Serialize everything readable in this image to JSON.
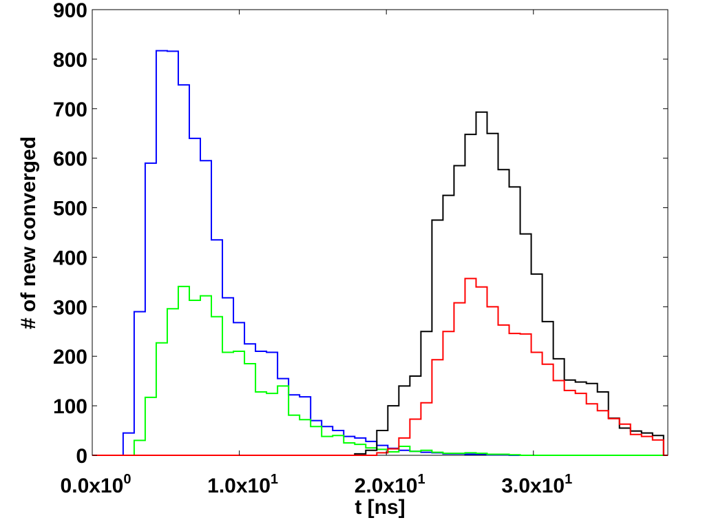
{
  "chart_data": {
    "type": "line",
    "step": true,
    "title": "",
    "xlabel": "t [ns]",
    "ylabel": "# of new converged",
    "xlim": [
      0,
      39.14
    ],
    "ylim": [
      0,
      900
    ],
    "grid": false,
    "legend": "none",
    "y_ticks": [
      0,
      100,
      200,
      300,
      400,
      500,
      600,
      700,
      800,
      900
    ],
    "y_tick_labels": [
      "0",
      "100",
      "200",
      "300",
      "400",
      "500",
      "600",
      "700",
      "800",
      "900"
    ],
    "x_ticks": [
      0,
      10,
      20,
      30
    ],
    "x_tick_labels": [
      {
        "mantissa": "0.0x10",
        "exponent": "0"
      },
      {
        "mantissa": "1.0x10",
        "exponent": "1"
      },
      {
        "mantissa": "2.0x10",
        "exponent": "1"
      },
      {
        "mantissa": "3.0x10",
        "exponent": "1"
      }
    ],
    "bin_width": 0.75,
    "series": [
      {
        "color": "#0000ff",
        "x": [
          -0.15,
          0.6,
          1.35,
          2.1,
          2.85,
          3.6,
          4.35,
          5.1,
          5.85,
          6.6,
          7.35,
          8.1,
          8.85,
          9.6,
          10.35,
          11.1,
          11.85,
          12.6,
          13.35,
          14.1,
          14.85,
          15.6,
          16.35,
          17.1,
          17.85,
          18.6,
          19.35,
          20.1,
          20.85,
          21.6,
          22.35,
          23.1,
          23.85,
          24.6,
          25.35,
          26.1,
          26.85,
          27.6,
          28.35,
          29.1
        ],
        "values": [
          0,
          0,
          0,
          45,
          290,
          590,
          817,
          816,
          748,
          640,
          595,
          435,
          318,
          268,
          225,
          210,
          208,
          155,
          122,
          118,
          70,
          58,
          50,
          38,
          35,
          28,
          20,
          14,
          10,
          8,
          6,
          5,
          3,
          3,
          2,
          2,
          1,
          1,
          0,
          0
        ]
      },
      {
        "color": "#00ff00",
        "x": [
          -0.15,
          0.6,
          1.35,
          2.1,
          2.85,
          3.6,
          4.35,
          5.1,
          5.85,
          6.6,
          7.35,
          8.1,
          8.85,
          9.6,
          10.35,
          11.1,
          11.85,
          12.6,
          13.35,
          14.1,
          14.85,
          15.6,
          16.35,
          17.1,
          17.85,
          18.6,
          19.35,
          20.1,
          20.85,
          21.6,
          22.35,
          23.1,
          23.85,
          24.6,
          25.35,
          26.1,
          26.85,
          27.6,
          28.35,
          29.1
        ],
        "values": [
          0,
          0,
          0,
          0,
          30,
          117,
          227,
          296,
          341,
          313,
          322,
          280,
          208,
          210,
          185,
          128,
          125,
          140,
          81,
          72,
          58,
          38,
          40,
          25,
          22,
          15,
          12,
          7,
          18,
          8,
          10,
          6,
          4,
          4,
          5,
          4,
          2,
          2,
          1,
          0
        ]
      },
      {
        "color": "#000000",
        "x": [
          -0.15,
          0.6,
          1.35,
          2.1,
          2.85,
          3.6,
          4.35,
          5.1,
          5.85,
          6.6,
          7.35,
          8.1,
          8.85,
          9.6,
          10.35,
          11.1,
          11.85,
          12.6,
          13.35,
          14.1,
          14.85,
          15.6,
          16.35,
          17.1,
          17.85,
          18.6,
          19.35,
          20.1,
          20.85,
          21.6,
          22.35,
          23.1,
          23.85,
          24.6,
          25.35,
          26.1,
          26.85,
          27.6,
          28.35,
          29.1,
          29.85,
          30.6,
          31.35,
          32.1,
          32.85,
          33.6,
          34.35,
          35.1,
          35.85,
          36.6,
          37.35,
          38.1
        ],
        "values": [
          0,
          0,
          0,
          0,
          0,
          0,
          0,
          0,
          0,
          0,
          0,
          0,
          0,
          0,
          0,
          0,
          0,
          0,
          0,
          0,
          0,
          0,
          0,
          0,
          3,
          10,
          50,
          100,
          140,
          160,
          250,
          475,
          525,
          585,
          648,
          693,
          650,
          577,
          542,
          447,
          366,
          270,
          195,
          152,
          148,
          145,
          128,
          75,
          55,
          49,
          45,
          40
        ]
      },
      {
        "color": "#ff0000",
        "x": [
          -0.15,
          0.6,
          1.35,
          2.1,
          2.85,
          3.6,
          4.35,
          5.1,
          5.85,
          6.6,
          7.35,
          8.1,
          8.85,
          9.6,
          10.35,
          11.1,
          11.85,
          12.6,
          13.35,
          14.1,
          14.85,
          15.6,
          16.35,
          17.1,
          17.85,
          18.6,
          19.35,
          20.1,
          20.85,
          21.6,
          22.35,
          23.1,
          23.85,
          24.6,
          25.35,
          26.1,
          26.85,
          27.6,
          28.35,
          29.1,
          29.85,
          30.6,
          31.35,
          32.1,
          32.85,
          33.6,
          34.35,
          35.1,
          35.85,
          36.6,
          37.35,
          38.1
        ],
        "values": [
          0,
          0,
          0,
          0,
          0,
          0,
          0,
          0,
          0,
          0,
          0,
          0,
          0,
          0,
          0,
          0,
          0,
          0,
          0,
          0,
          0,
          0,
          0,
          0,
          0,
          0,
          5,
          13,
          35,
          73,
          106,
          193,
          250,
          308,
          357,
          340,
          300,
          263,
          246,
          245,
          208,
          184,
          151,
          131,
          125,
          104,
          90,
          74,
          63,
          42,
          38,
          31
        ]
      }
    ]
  }
}
